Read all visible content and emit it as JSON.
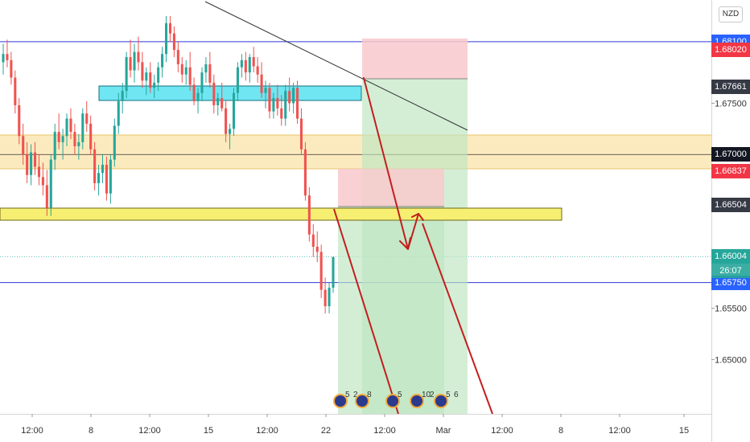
{
  "chart_data": {
    "type": "candlestick",
    "instrument_badge": "NZD",
    "x_ticks": [
      "12:00",
      "8",
      "12:00",
      "15",
      "12:00",
      "22",
      "12:00",
      "Mar",
      "12:00",
      "8",
      "12:00",
      "15"
    ],
    "y_ticks": [
      1.675,
      1.655,
      1.65
    ],
    "y_tick_labels": [
      "1.67500",
      "1.65500",
      "1.65000"
    ],
    "ylim": [
      1.6465,
      1.6835
    ],
    "price_labels": [
      {
        "name": "hline-top",
        "value": 1.681,
        "text": "1.68100",
        "color": "#2962ff"
      },
      {
        "name": "tp-upper",
        "value": 1.6802,
        "text": "1.68020",
        "color": "#f23645"
      },
      {
        "name": "trendline-price",
        "value": 1.67661,
        "text": "1.67661",
        "color": "#363a45"
      },
      {
        "name": "zone-mid",
        "value": 1.67,
        "text": "1.67000",
        "color": "#131722"
      },
      {
        "name": "stop-level",
        "value": 1.66837,
        "text": "1.66837",
        "color": "#f23645"
      },
      {
        "name": "entry-level",
        "value": 1.66504,
        "text": "1.66504",
        "color": "#363a45"
      },
      {
        "name": "last-price",
        "value": 1.66004,
        "text": "1.66004",
        "color": "#26a69a"
      },
      {
        "name": "hline-bottom",
        "value": 1.6575,
        "text": "1.65750",
        "color": "#2962ff"
      }
    ],
    "countdown": "26:07",
    "event_badges": [
      "5",
      "2",
      "8",
      "5",
      "10",
      "2",
      "5",
      "6"
    ],
    "candles": [
      [
        1.679,
        1.6808,
        1.6778,
        1.6798
      ],
      [
        1.6798,
        1.6812,
        1.6785,
        1.6792
      ],
      [
        1.6792,
        1.68,
        1.6768,
        1.6775
      ],
      [
        1.6775,
        1.6782,
        1.674,
        1.6748
      ],
      [
        1.6748,
        1.6755,
        1.671,
        1.6718
      ],
      [
        1.6718,
        1.673,
        1.669,
        1.67
      ],
      [
        1.67,
        1.6712,
        1.6672,
        1.668
      ],
      [
        1.668,
        1.671,
        1.667,
        1.6702
      ],
      [
        1.6702,
        1.6712,
        1.668,
        1.6688
      ],
      [
        1.6688,
        1.67,
        1.667,
        1.6678
      ],
      [
        1.6678,
        1.6692,
        1.666,
        1.667
      ],
      [
        1.667,
        1.6685,
        1.664,
        1.6648
      ],
      [
        1.6648,
        1.67,
        1.664,
        1.6695
      ],
      [
        1.6695,
        1.673,
        1.6685,
        1.6722
      ],
      [
        1.6722,
        1.674,
        1.6705,
        1.6712
      ],
      [
        1.6712,
        1.6725,
        1.6695,
        1.6718
      ],
      [
        1.6718,
        1.674,
        1.6708,
        1.6735
      ],
      [
        1.6735,
        1.6745,
        1.6715,
        1.6722
      ],
      [
        1.6722,
        1.673,
        1.67,
        1.6708
      ],
      [
        1.6708,
        1.672,
        1.6695,
        1.6712
      ],
      [
        1.6712,
        1.6745,
        1.6705,
        1.674
      ],
      [
        1.674,
        1.6752,
        1.6722,
        1.673
      ],
      [
        1.673,
        1.6738,
        1.67,
        1.6705
      ],
      [
        1.6705,
        1.6712,
        1.6665,
        1.6672
      ],
      [
        1.6672,
        1.669,
        1.666,
        1.6682
      ],
      [
        1.6682,
        1.67,
        1.6672,
        1.669
      ],
      [
        1.669,
        1.6698,
        1.6655,
        1.6662
      ],
      [
        1.6662,
        1.67,
        1.6652,
        1.6695
      ],
      [
        1.6695,
        1.6735,
        1.6688,
        1.6728
      ],
      [
        1.6728,
        1.676,
        1.672,
        1.6752
      ],
      [
        1.6752,
        1.677,
        1.674,
        1.6762
      ],
      [
        1.6762,
        1.68,
        1.6755,
        1.6795
      ],
      [
        1.6795,
        1.6812,
        1.6775,
        1.6782
      ],
      [
        1.6782,
        1.6808,
        1.677,
        1.68
      ],
      [
        1.68,
        1.6815,
        1.6782,
        1.679
      ],
      [
        1.679,
        1.68,
        1.6765,
        1.6772
      ],
      [
        1.6772,
        1.6785,
        1.6758,
        1.678
      ],
      [
        1.678,
        1.679,
        1.676,
        1.6765
      ],
      [
        1.6765,
        1.6778,
        1.6755,
        1.677
      ],
      [
        1.677,
        1.679,
        1.6762,
        1.6785
      ],
      [
        1.6785,
        1.6805,
        1.6775,
        1.6798
      ],
      [
        1.6798,
        1.6835,
        1.679,
        1.6828
      ],
      [
        1.6828,
        1.6835,
        1.681,
        1.6818
      ],
      [
        1.6818,
        1.6825,
        1.6795,
        1.6802
      ],
      [
        1.6802,
        1.681,
        1.678,
        1.6788
      ],
      [
        1.6788,
        1.6795,
        1.677,
        1.6778
      ],
      [
        1.6778,
        1.6792,
        1.6768,
        1.6785
      ],
      [
        1.6785,
        1.68,
        1.6762,
        1.6768
      ],
      [
        1.6768,
        1.6775,
        1.6748,
        1.6752
      ],
      [
        1.6752,
        1.6765,
        1.674,
        1.676
      ],
      [
        1.676,
        1.6785,
        1.6752,
        1.678
      ],
      [
        1.678,
        1.6795,
        1.677,
        1.6788
      ],
      [
        1.6788,
        1.68,
        1.6765,
        1.677
      ],
      [
        1.677,
        1.6778,
        1.674,
        1.6748
      ],
      [
        1.6748,
        1.676,
        1.6738,
        1.6755
      ],
      [
        1.6755,
        1.677,
        1.6742,
        1.6745
      ],
      [
        1.6745,
        1.6752,
        1.6712,
        1.672
      ],
      [
        1.672,
        1.673,
        1.6705,
        1.6725
      ],
      [
        1.6725,
        1.6765,
        1.6718,
        1.676
      ],
      [
        1.676,
        1.679,
        1.6752,
        1.6785
      ],
      [
        1.6785,
        1.6798,
        1.6775,
        1.6792
      ],
      [
        1.6792,
        1.68,
        1.6772,
        1.678
      ],
      [
        1.678,
        1.6798,
        1.677,
        1.6795
      ],
      [
        1.6795,
        1.6805,
        1.678,
        1.6786
      ],
      [
        1.6786,
        1.6795,
        1.677,
        1.6778
      ],
      [
        1.6778,
        1.679,
        1.6755,
        1.676
      ],
      [
        1.676,
        1.6772,
        1.6745,
        1.6765
      ],
      [
        1.6765,
        1.677,
        1.6735,
        1.6742
      ],
      [
        1.6742,
        1.676,
        1.6735,
        1.6755
      ],
      [
        1.6755,
        1.6768,
        1.6738,
        1.6745
      ],
      [
        1.6745,
        1.6758,
        1.6728,
        1.6735
      ],
      [
        1.6735,
        1.6768,
        1.6728,
        1.6762
      ],
      [
        1.6762,
        1.6775,
        1.6742,
        1.675
      ],
      [
        1.675,
        1.677,
        1.674,
        1.6765
      ],
      [
        1.6765,
        1.6772,
        1.673,
        1.6735
      ],
      [
        1.6735,
        1.6745,
        1.67,
        1.6705
      ],
      [
        1.6705,
        1.6712,
        1.6655,
        1.666
      ],
      [
        1.666,
        1.6668,
        1.6615,
        1.6622
      ],
      [
        1.6622,
        1.6632,
        1.66,
        1.661
      ],
      [
        1.661,
        1.6625,
        1.6595,
        1.6605
      ],
      [
        1.6605,
        1.6612,
        1.656,
        1.6568
      ],
      [
        1.6568,
        1.658,
        1.6545,
        1.6552
      ],
      [
        1.6552,
        1.6575,
        1.6545,
        1.657
      ],
      [
        1.657,
        1.66,
        1.6565,
        1.66
      ]
    ]
  },
  "axes": {
    "price_axis_visible": true,
    "time_axis_visible": true,
    "grid": false
  },
  "colors": {
    "bull": "#26a69a",
    "bear": "#ef5350",
    "stop_zone": "#f8c9cc",
    "target_zone": "#bde5c0",
    "cyan_zone": "#6fe6f2",
    "yellow_zone": "#f6ef72",
    "orange_zone": "#fce6b4",
    "arrow": "#c21e1e",
    "hline": "#2b3bd6"
  }
}
